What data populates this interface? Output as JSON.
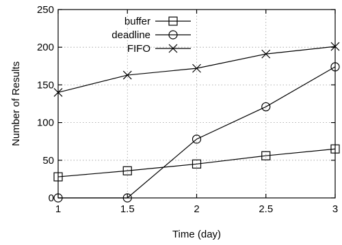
{
  "chart_data": {
    "type": "line",
    "xlabel": "Time (day)",
    "ylabel": "Number of Results",
    "xlim": [
      1,
      3
    ],
    "ylim": [
      0,
      250
    ],
    "x_ticks": [
      "1",
      "1.5",
      "2",
      "2.5",
      "3"
    ],
    "y_ticks": [
      "0",
      "50",
      "100",
      "150",
      "200",
      "250"
    ],
    "grid": true,
    "legend_position": "top-left",
    "x": [
      1,
      1.5,
      2,
      2.5,
      3
    ],
    "series": [
      {
        "name": "buffer",
        "marker": "square",
        "values": [
          28,
          36,
          45,
          56,
          65
        ]
      },
      {
        "name": "deadline",
        "marker": "circle",
        "values": [
          0,
          0,
          78,
          121,
          174
        ]
      },
      {
        "name": "FIFO",
        "marker": "cross",
        "values": [
          140,
          163,
          172,
          191,
          201
        ]
      }
    ]
  }
}
